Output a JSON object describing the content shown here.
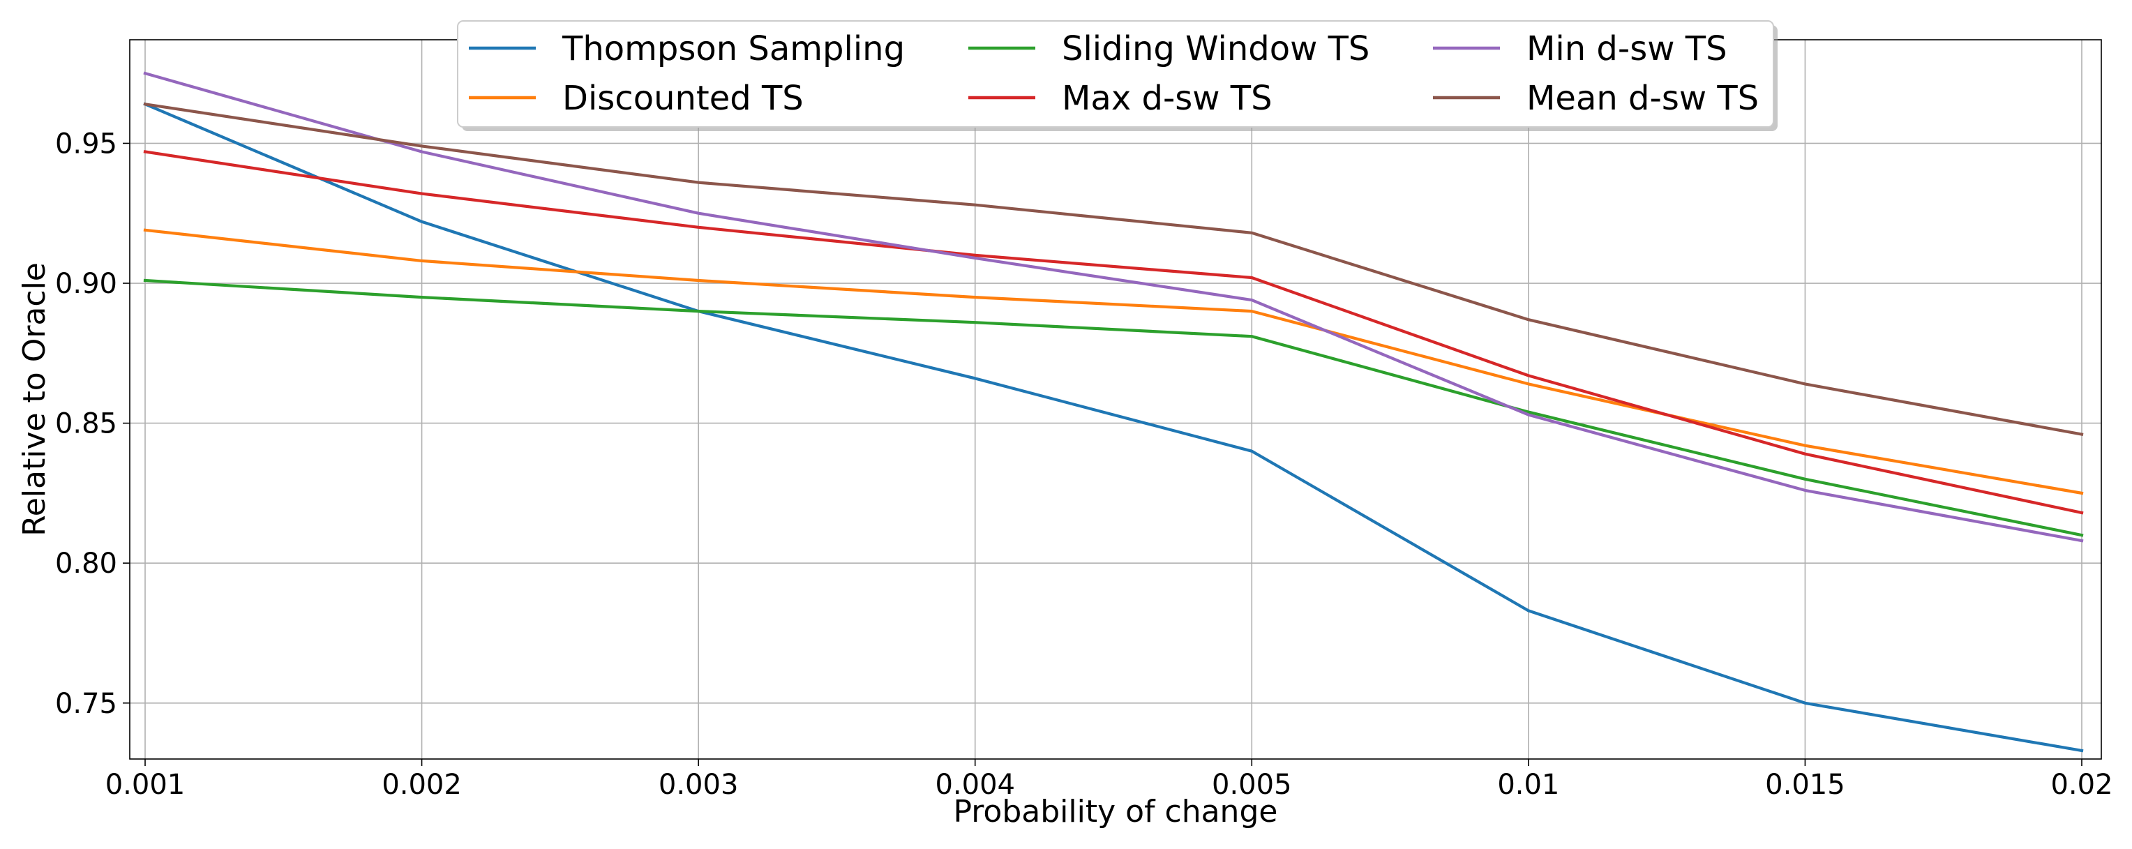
{
  "chart_data": {
    "type": "line",
    "title": "",
    "xlabel": "Probability of change",
    "ylabel": "Relative to Oracle",
    "categories": [
      "0.001",
      "0.002",
      "0.003",
      "0.004",
      "0.005",
      "0.01",
      "0.015",
      "0.02"
    ],
    "ylim": [
      0.73,
      0.987
    ],
    "yticks": [
      0.75,
      0.8,
      0.85,
      0.9,
      0.95
    ],
    "ytick_labels": [
      "0.75",
      "0.80",
      "0.85",
      "0.90",
      "0.95"
    ],
    "grid": true,
    "legend_position": "top-center",
    "legend_columns": 3,
    "series": [
      {
        "name": "Thompson Sampling",
        "color": "#1f77b4",
        "values": [
          0.964,
          0.922,
          0.89,
          0.866,
          0.84,
          0.783,
          0.75,
          0.733
        ]
      },
      {
        "name": "Discounted TS",
        "color": "#ff7f0e",
        "values": [
          0.919,
          0.908,
          0.901,
          0.895,
          0.89,
          0.864,
          0.842,
          0.825
        ]
      },
      {
        "name": "Sliding Window TS",
        "color": "#2ca02c",
        "values": [
          0.901,
          0.895,
          0.89,
          0.886,
          0.881,
          0.854,
          0.83,
          0.81
        ]
      },
      {
        "name": "Max d-sw TS",
        "color": "#d62728",
        "values": [
          0.947,
          0.932,
          0.92,
          0.91,
          0.902,
          0.867,
          0.839,
          0.818
        ]
      },
      {
        "name": "Min d-sw TS",
        "color": "#9467bd",
        "values": [
          0.975,
          0.947,
          0.925,
          0.909,
          0.894,
          0.853,
          0.826,
          0.808
        ]
      },
      {
        "name": "Mean d-sw TS",
        "color": "#8c564b",
        "values": [
          0.964,
          0.949,
          0.936,
          0.928,
          0.918,
          0.887,
          0.864,
          0.846
        ]
      }
    ]
  }
}
